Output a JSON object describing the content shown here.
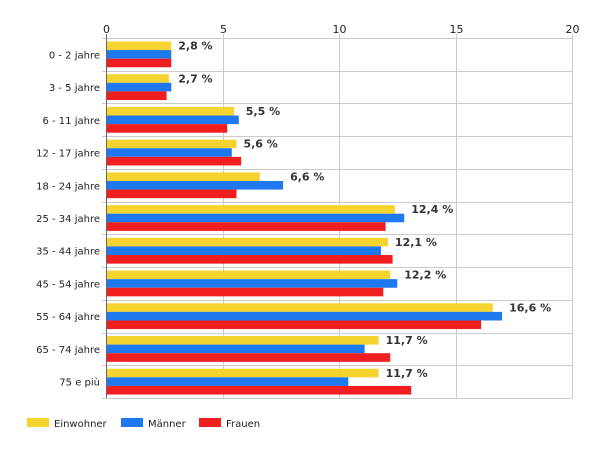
{
  "chart_data": {
    "type": "bar",
    "orientation": "horizontal",
    "categories": [
      "0 - 2 jahre",
      "3 - 5 jahre",
      "6 - 11 jahre",
      "12 - 17 jahre",
      "18 - 24 jahre",
      "25 - 34 jahre",
      "35 - 44 jahre",
      "45 - 54 jahre",
      "55 - 64 jahre",
      "65 - 74 jahre",
      "75 e più"
    ],
    "series": [
      {
        "name": "Einwohner",
        "color": "#f5d430",
        "values": [
          2.8,
          2.7,
          5.5,
          5.6,
          6.6,
          12.4,
          12.1,
          12.2,
          16.6,
          11.7,
          11.7
        ]
      },
      {
        "name": "Männer",
        "color": "#1e78f0",
        "values": [
          2.8,
          2.8,
          5.7,
          5.4,
          7.6,
          12.8,
          11.8,
          12.5,
          17.0,
          11.1,
          10.4
        ]
      },
      {
        "name": "Frauen",
        "color": "#f01e1e",
        "values": [
          2.8,
          2.6,
          5.2,
          5.8,
          5.6,
          12.0,
          12.3,
          11.9,
          16.1,
          12.2,
          13.1
        ]
      }
    ],
    "data_labels": [
      "2,8 %",
      "2,7 %",
      "5,5 %",
      "5,6 %",
      "6,6 %",
      "12,4 %",
      "12,1 %",
      "12,2 %",
      "16,6 %",
      "11,7 %",
      "11,7 %"
    ],
    "xlim": [
      0,
      20
    ],
    "xticks": [
      0,
      5,
      10,
      15,
      20
    ],
    "xtick_labels": [
      "0",
      "5",
      "10",
      "15",
      "20"
    ],
    "x_axis_position": "top",
    "grid": true,
    "legend_position": "bottom-left",
    "title": "",
    "xlabel": "",
    "ylabel": ""
  }
}
